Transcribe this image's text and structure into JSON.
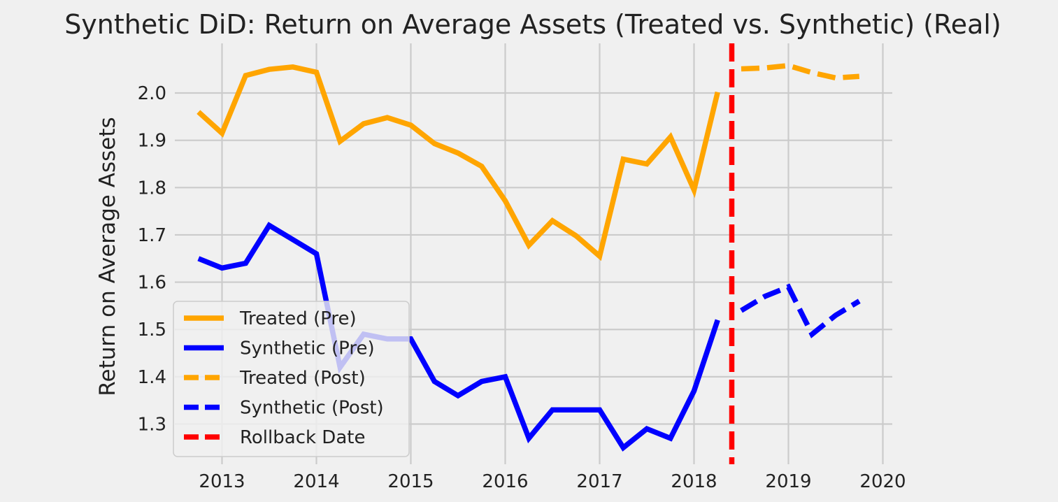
{
  "chart_data": {
    "type": "line",
    "title": "Synthetic DiD: Return on Average Assets (Treated vs. Synthetic) (Real)",
    "xlabel": "",
    "ylabel": "Return on Average Assets",
    "x_ticks": [
      "2013",
      "2014",
      "2015",
      "2016",
      "2017",
      "2018",
      "2019",
      "2020"
    ],
    "y_ticks": [
      "1.3",
      "1.4",
      "1.5",
      "1.6",
      "1.7",
      "1.8",
      "1.9",
      "2.0"
    ],
    "xlim": [
      2012.5,
      2020.1
    ],
    "ylim": [
      1.215,
      2.105
    ],
    "grid": true,
    "legend_position": "lower-left",
    "rollback_date": 2018.4,
    "series": [
      {
        "name": "Treated (Pre)",
        "color": "#ffa500",
        "style": "solid",
        "x": [
          2012.75,
          2013.0,
          2013.25,
          2013.5,
          2013.75,
          2014.0,
          2014.25,
          2014.5,
          2014.75,
          2015.0,
          2015.25,
          2015.5,
          2015.75,
          2016.0,
          2016.25,
          2016.5,
          2016.75,
          2017.0,
          2017.25,
          2017.5,
          2017.75,
          2018.0,
          2018.25
        ],
        "y": [
          1.96,
          1.915,
          2.037,
          2.05,
          2.055,
          2.044,
          1.898,
          1.935,
          1.948,
          1.932,
          1.893,
          1.873,
          1.845,
          1.772,
          1.678,
          1.73,
          1.698,
          1.655,
          1.86,
          1.85,
          1.907,
          1.795,
          2.002
        ]
      },
      {
        "name": "Synthetic (Pre)",
        "color": "#0000ff",
        "style": "solid",
        "x": [
          2012.75,
          2013.0,
          2013.25,
          2013.5,
          2013.75,
          2014.0,
          2014.25,
          2014.5,
          2014.75,
          2015.0,
          2015.25,
          2015.5,
          2015.75,
          2016.0,
          2016.25,
          2016.5,
          2016.75,
          2017.0,
          2017.25,
          2017.5,
          2017.75,
          2018.0,
          2018.25
        ],
        "y": [
          1.65,
          1.63,
          1.64,
          1.72,
          1.69,
          1.66,
          1.42,
          1.49,
          1.48,
          1.48,
          1.39,
          1.36,
          1.39,
          1.4,
          1.27,
          1.33,
          1.33,
          1.33,
          1.25,
          1.29,
          1.27,
          1.37,
          1.52
        ]
      },
      {
        "name": "Treated (Post)",
        "color": "#ffa500",
        "style": "dashed",
        "x": [
          2018.5,
          2018.75,
          2019.0,
          2019.25,
          2019.5,
          2019.75
        ],
        "y": [
          2.051,
          2.053,
          2.058,
          2.043,
          2.032,
          2.035
        ]
      },
      {
        "name": "Synthetic (Post)",
        "color": "#0000ff",
        "style": "dashed",
        "x": [
          2018.5,
          2018.75,
          2019.0,
          2019.25,
          2019.5,
          2019.75
        ],
        "y": [
          1.54,
          1.57,
          1.59,
          1.49,
          1.53,
          1.56
        ]
      }
    ],
    "legend": [
      {
        "label": "Treated (Pre)",
        "color": "#ffa500",
        "style": "solid"
      },
      {
        "label": "Synthetic (Pre)",
        "color": "#0000ff",
        "style": "solid"
      },
      {
        "label": "Treated (Post)",
        "color": "#ffa500",
        "style": "dashed"
      },
      {
        "label": "Synthetic (Post)",
        "color": "#0000ff",
        "style": "dashed"
      },
      {
        "label": "Rollback Date",
        "color": "#ff0000",
        "style": "dashed"
      }
    ]
  }
}
